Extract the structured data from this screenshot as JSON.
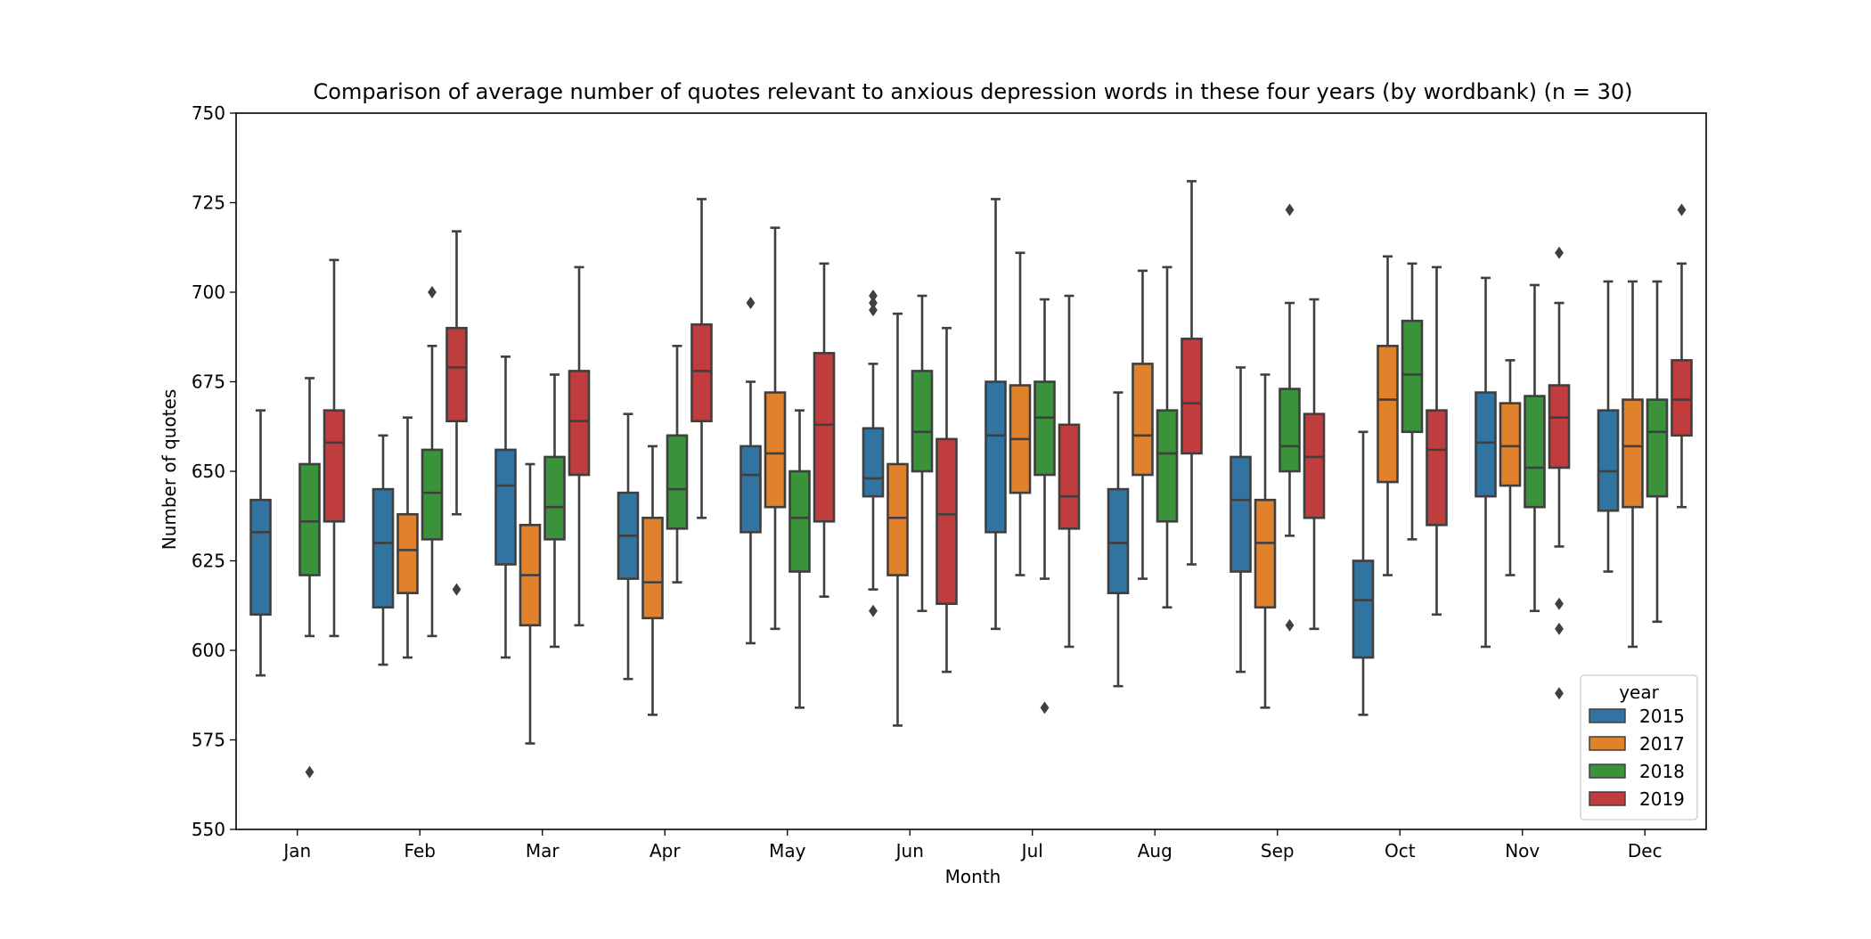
{
  "chart_data": {
    "type": "boxplot",
    "title": "Comparison of average number of quotes relevant to anxious depression words in these four years (by wordbank) (n = 30)",
    "xlabel": "Month",
    "ylabel": "Number of quotes",
    "ylim": [
      550,
      750
    ],
    "yticks": [
      550,
      575,
      600,
      625,
      650,
      675,
      700,
      725,
      750
    ],
    "grid": false,
    "categories": [
      "Jan",
      "Feb",
      "Mar",
      "Apr",
      "May",
      "Jun",
      "Jul",
      "Aug",
      "Sep",
      "Oct",
      "Nov",
      "Dec"
    ],
    "legend": {
      "title": "year",
      "location": "lower right"
    },
    "series": [
      {
        "name": "2015",
        "color": "#3274a1",
        "boxes": [
          {
            "min": 593,
            "q1": 610,
            "median": 633,
            "q3": 642,
            "max": 667,
            "outliers": []
          },
          {
            "min": 596,
            "q1": 612,
            "median": 630,
            "q3": 645,
            "max": 660,
            "outliers": []
          },
          {
            "min": 598,
            "q1": 624,
            "median": 646,
            "q3": 656,
            "max": 682,
            "outliers": []
          },
          {
            "min": 592,
            "q1": 620,
            "median": 632,
            "q3": 644,
            "max": 666,
            "outliers": []
          },
          {
            "min": 602,
            "q1": 633,
            "median": 649,
            "q3": 657,
            "max": 675,
            "outliers": [
              697
            ]
          },
          {
            "min": 617,
            "q1": 643,
            "median": 648,
            "q3": 662,
            "max": 680,
            "outliers": [
              695,
              697,
              699,
              611
            ]
          },
          {
            "min": 606,
            "q1": 633,
            "median": 660,
            "q3": 675,
            "max": 726,
            "outliers": []
          },
          {
            "min": 590,
            "q1": 616,
            "median": 630,
            "q3": 645,
            "max": 672,
            "outliers": []
          },
          {
            "min": 594,
            "q1": 622,
            "median": 642,
            "q3": 654,
            "max": 679,
            "outliers": []
          },
          {
            "min": 582,
            "q1": 598,
            "median": 614,
            "q3": 625,
            "max": 661,
            "outliers": []
          },
          {
            "min": 601,
            "q1": 643,
            "median": 658,
            "q3": 672,
            "max": 704,
            "outliers": []
          },
          {
            "min": 622,
            "q1": 639,
            "median": 650,
            "q3": 667,
            "max": 703,
            "outliers": []
          }
        ]
      },
      {
        "name": "2017",
        "color": "#e1812c",
        "boxes": [
          null,
          {
            "min": 598,
            "q1": 616,
            "median": 628,
            "q3": 638,
            "max": 665,
            "outliers": []
          },
          {
            "min": 574,
            "q1": 607,
            "median": 621,
            "q3": 635,
            "max": 652,
            "outliers": []
          },
          {
            "min": 582,
            "q1": 609,
            "median": 619,
            "q3": 637,
            "max": 657,
            "outliers": []
          },
          {
            "min": 606,
            "q1": 640,
            "median": 655,
            "q3": 672,
            "max": 718,
            "outliers": []
          },
          {
            "min": 579,
            "q1": 621,
            "median": 637,
            "q3": 652,
            "max": 694,
            "outliers": []
          },
          {
            "min": 621,
            "q1": 644,
            "median": 659,
            "q3": 674,
            "max": 711,
            "outliers": []
          },
          {
            "min": 620,
            "q1": 649,
            "median": 660,
            "q3": 680,
            "max": 706,
            "outliers": []
          },
          {
            "min": 584,
            "q1": 612,
            "median": 630,
            "q3": 642,
            "max": 677,
            "outliers": []
          },
          {
            "min": 621,
            "q1": 647,
            "median": 670,
            "q3": 685,
            "max": 710,
            "outliers": []
          },
          {
            "min": 621,
            "q1": 646,
            "median": 657,
            "q3": 669,
            "max": 681,
            "outliers": []
          },
          {
            "min": 601,
            "q1": 640,
            "median": 657,
            "q3": 670,
            "max": 703,
            "outliers": []
          }
        ]
      },
      {
        "name": "2018",
        "color": "#3a923a",
        "boxes": [
          {
            "min": 604,
            "q1": 621,
            "median": 636,
            "q3": 652,
            "max": 676,
            "outliers": [
              566
            ]
          },
          {
            "min": 604,
            "q1": 631,
            "median": 644,
            "q3": 656,
            "max": 685,
            "outliers": [
              700
            ]
          },
          {
            "min": 601,
            "q1": 631,
            "median": 640,
            "q3": 654,
            "max": 677,
            "outliers": []
          },
          {
            "min": 619,
            "q1": 634,
            "median": 645,
            "q3": 660,
            "max": 685,
            "outliers": []
          },
          {
            "min": 584,
            "q1": 622,
            "median": 637,
            "q3": 650,
            "max": 667,
            "outliers": []
          },
          {
            "min": 611,
            "q1": 650,
            "median": 661,
            "q3": 678,
            "max": 699,
            "outliers": []
          },
          {
            "min": 620,
            "q1": 649,
            "median": 665,
            "q3": 675,
            "max": 698,
            "outliers": [
              584
            ]
          },
          {
            "min": 612,
            "q1": 636,
            "median": 655,
            "q3": 667,
            "max": 707,
            "outliers": []
          },
          {
            "min": 632,
            "q1": 650,
            "median": 657,
            "q3": 673,
            "max": 697,
            "outliers": [
              723,
              607
            ]
          },
          {
            "min": 631,
            "q1": 661,
            "median": 677,
            "q3": 692,
            "max": 708,
            "outliers": []
          },
          {
            "min": 611,
            "q1": 640,
            "median": 651,
            "q3": 671,
            "max": 702,
            "outliers": []
          },
          {
            "min": 608,
            "q1": 643,
            "median": 661,
            "q3": 670,
            "max": 703,
            "outliers": []
          }
        ]
      },
      {
        "name": "2019",
        "color": "#c03d3e",
        "boxes": [
          {
            "min": 604,
            "q1": 636,
            "median": 658,
            "q3": 667,
            "max": 709,
            "outliers": []
          },
          {
            "min": 638,
            "q1": 664,
            "median": 679,
            "q3": 690,
            "max": 717,
            "outliers": [
              617
            ]
          },
          {
            "min": 607,
            "q1": 649,
            "median": 664,
            "q3": 678,
            "max": 707,
            "outliers": []
          },
          {
            "min": 637,
            "q1": 664,
            "median": 678,
            "q3": 691,
            "max": 726,
            "outliers": []
          },
          {
            "min": 615,
            "q1": 636,
            "median": 663,
            "q3": 683,
            "max": 708,
            "outliers": []
          },
          {
            "min": 594,
            "q1": 613,
            "median": 638,
            "q3": 659,
            "max": 690,
            "outliers": []
          },
          {
            "min": 601,
            "q1": 634,
            "median": 643,
            "q3": 663,
            "max": 699,
            "outliers": []
          },
          {
            "min": 624,
            "q1": 655,
            "median": 669,
            "q3": 687,
            "max": 731,
            "outliers": []
          },
          {
            "min": 606,
            "q1": 637,
            "median": 654,
            "q3": 666,
            "max": 698,
            "outliers": []
          },
          {
            "min": 610,
            "q1": 635,
            "median": 656,
            "q3": 667,
            "max": 707,
            "outliers": []
          },
          {
            "min": 629,
            "q1": 651,
            "median": 665,
            "q3": 674,
            "max": 697,
            "outliers": [
              711,
              613,
              606,
              588
            ]
          },
          {
            "min": 640,
            "q1": 660,
            "median": 670,
            "q3": 681,
            "max": 708,
            "outliers": [
              723
            ]
          }
        ]
      }
    ]
  }
}
